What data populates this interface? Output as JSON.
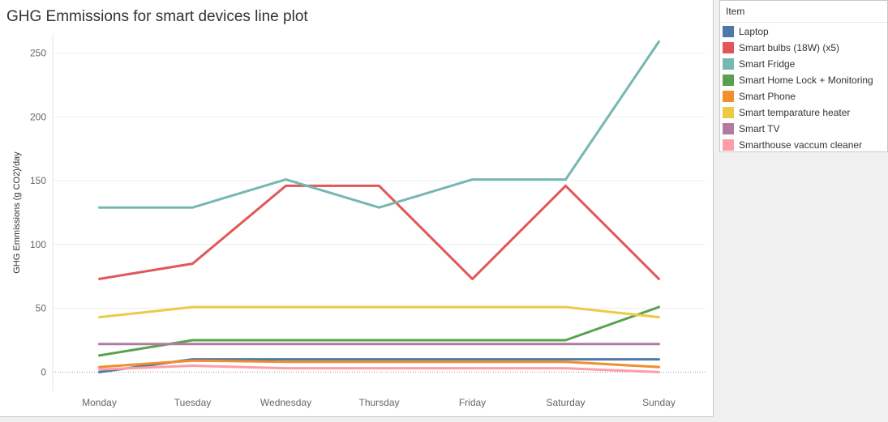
{
  "chart_data": {
    "type": "line",
    "title": "GHG Emmissions for smart devices line plot",
    "xlabel": "",
    "ylabel": "GHG Emmissions (g CO2)/day",
    "ylim": [
      -15,
      265
    ],
    "yticks": [
      0,
      50,
      100,
      150,
      200,
      250
    ],
    "grid": true,
    "legend_position": "right",
    "legend_title": "Item",
    "categories": [
      "Monday",
      "Tuesday",
      "Wednesday",
      "Thursday",
      "Friday",
      "Saturday",
      "Sunday"
    ],
    "series": [
      {
        "name": "Laptop",
        "color": "#4e79a7",
        "values": [
          0,
          10,
          10,
          10,
          10,
          10,
          10
        ]
      },
      {
        "name": "Smart bulbs (18W) (x5)",
        "color": "#e15759",
        "values": [
          73,
          85,
          146,
          146,
          73,
          146,
          73
        ]
      },
      {
        "name": "Smart Fridge",
        "color": "#76b7b2",
        "values": [
          129,
          129,
          151,
          129,
          151,
          151,
          259
        ]
      },
      {
        "name": "Smart Home Lock + Monitoring",
        "color": "#59a14f",
        "values": [
          13,
          25,
          25,
          25,
          25,
          25,
          51
        ]
      },
      {
        "name": "Smart Phone",
        "color": "#f28e2b",
        "values": [
          4,
          9,
          8,
          8,
          8,
          8,
          4
        ]
      },
      {
        "name": "Smart temparature heater",
        "color": "#edc948",
        "values": [
          43,
          51,
          51,
          51,
          51,
          51,
          43
        ]
      },
      {
        "name": "Smart TV",
        "color": "#b07aa1",
        "values": [
          22,
          22,
          22,
          22,
          22,
          22,
          22
        ]
      },
      {
        "name": "Smarthouse  vaccum cleaner",
        "color": "#ff9da7",
        "values": [
          2,
          5,
          3,
          3,
          3,
          3,
          0
        ]
      }
    ]
  }
}
